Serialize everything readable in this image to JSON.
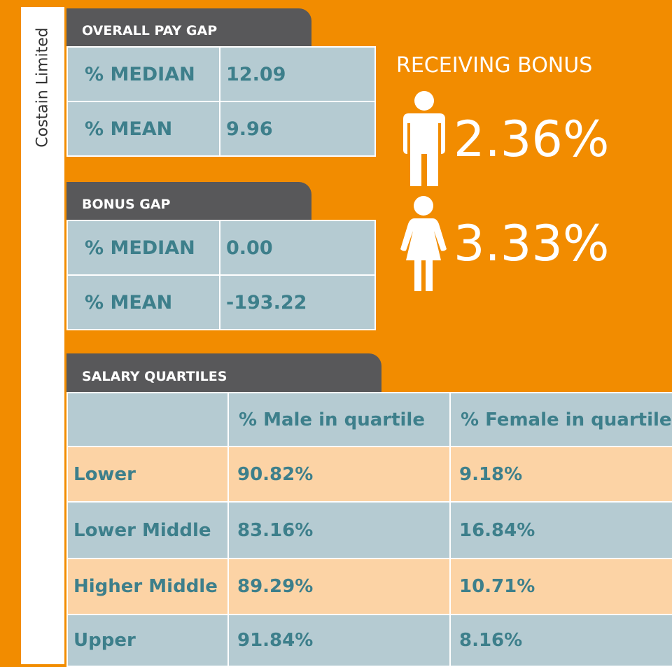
{
  "sidebar": "Costain Limited",
  "overall_pay_gap": {
    "title": "OVERALL PAY GAP",
    "rows": [
      [
        "% MEDIAN",
        "12.09"
      ],
      [
        "% MEAN",
        "9.96"
      ]
    ]
  },
  "bonus_gap": {
    "title": "BONUS GAP",
    "rows": [
      [
        "% MEDIAN",
        "0.00"
      ],
      [
        "% MEAN",
        "-193.22"
      ]
    ]
  },
  "receiving_bonus": {
    "title": "RECEIVING BONUS",
    "male": "2.36%",
    "female": "3.33%"
  },
  "salary_quartiles": {
    "title": "SALARY QUARTILES",
    "header": [
      "% Male in quartile",
      "% Female in quartile"
    ],
    "rows": [
      [
        "Lower",
        "90.82%",
        "9.18%"
      ],
      [
        "Lower Middle",
        "83.16%",
        "16.84%"
      ],
      [
        "Higher Middle",
        "89.29%",
        "10.71%"
      ],
      [
        "Upper",
        "91.84%",
        "8.16%"
      ]
    ]
  }
}
